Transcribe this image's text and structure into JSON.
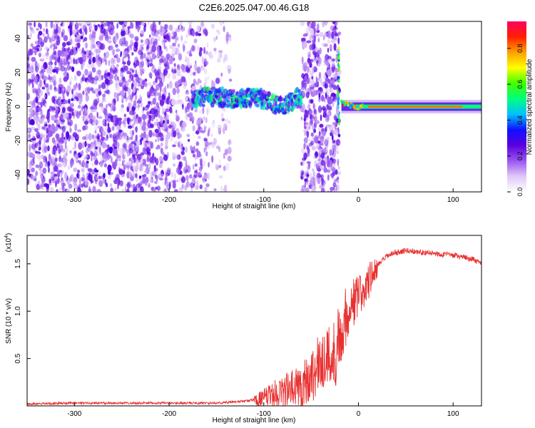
{
  "figure": {
    "title": "C2E6.2025.047.00.46.G18"
  },
  "chart_data": [
    {
      "type": "heatmap",
      "xlabel": "Height of straight line (km)",
      "ylabel": "Frequency (Hz)",
      "xlim": [
        -350,
        130
      ],
      "ylim": [
        -50,
        50
      ],
      "x_ticks": [
        -300,
        -200,
        -100,
        0,
        100
      ],
      "y_ticks": [
        -40,
        -20,
        0,
        20,
        40
      ],
      "grid": false,
      "colorbar": {
        "label": "Normalized spectral amplitude",
        "range": [
          0,
          0.95
        ],
        "ticks": [
          "0.0",
          "0.2",
          "0.4",
          "0.6",
          "0.8"
        ],
        "ticks_values": [
          0,
          0.2,
          0.4,
          0.6,
          0.8
        ],
        "colormap": [
          "#ffffff",
          "#e0c8f8",
          "#9a55f0",
          "#5a00e0",
          "#1010ff",
          "#00c0ff",
          "#00ff80",
          "#40ff00",
          "#ffff00",
          "#ffa000",
          "#ff2000",
          "#ff0060"
        ]
      },
      "regions": [
        {
          "x": [
            -350,
            -140
          ],
          "y": [
            -50,
            50
          ],
          "description_level": 0.3
        },
        {
          "x": [
            -175,
            -60
          ],
          "y": [
            -5,
            12
          ],
          "description_level": 0.45
        },
        {
          "x": [
            -60,
            -20
          ],
          "y": [
            -50,
            50
          ],
          "description_level": 0.3
        },
        {
          "x": [
            -18,
            130
          ],
          "y": [
            -2,
            2
          ],
          "description_level": 0.85
        }
      ],
      "trace": [
        {
          "x": -175,
          "y": 5
        },
        {
          "x": -150,
          "y": 6
        },
        {
          "x": -130,
          "y": 4
        },
        {
          "x": -110,
          "y": 6
        },
        {
          "x": -95,
          "y": 3
        },
        {
          "x": -80,
          "y": 0
        },
        {
          "x": -65,
          "y": 5
        },
        {
          "x": -20,
          "y": 3
        },
        {
          "x": -10,
          "y": 1
        },
        {
          "x": 0,
          "y": 0
        },
        {
          "x": 130,
          "y": 0
        }
      ]
    },
    {
      "type": "line",
      "xlabel": "Height of straight line (km)",
      "ylabel": "SNR (10 * v/v)",
      "y_multiplier": "(x10",
      "y_multiplier_exp": "4",
      "y_multiplier_close": ")",
      "xlim": [
        -350,
        130
      ],
      "ylim": [
        0,
        1.8
      ],
      "x_ticks": [
        -300,
        -200,
        -100,
        0,
        100
      ],
      "y_ticks": [
        0.5,
        1.0,
        1.5
      ],
      "y_tick_labels": [
        "0.5",
        "1.0",
        "1.5"
      ],
      "grid": false,
      "series": [
        {
          "color": "#e83030",
          "x": [
            -350,
            -300,
            -250,
            -200,
            -150,
            -120,
            -100,
            -90,
            -80,
            -70,
            -60,
            -50,
            -45,
            -40,
            -35,
            -30,
            -25,
            -20,
            -15,
            -10,
            -5,
            0,
            5,
            10,
            20,
            30,
            40,
            50,
            60,
            70,
            80,
            90,
            100,
            110,
            120,
            130
          ],
          "y": [
            0.02,
            0.03,
            0.03,
            0.03,
            0.03,
            0.05,
            0.08,
            0.12,
            0.16,
            0.17,
            0.22,
            0.32,
            0.38,
            0.46,
            0.52,
            0.5,
            0.56,
            0.72,
            0.9,
            1.02,
            1.1,
            1.15,
            1.2,
            1.3,
            1.48,
            1.58,
            1.62,
            1.64,
            1.63,
            1.62,
            1.61,
            1.6,
            1.59,
            1.57,
            1.55,
            1.5
          ]
        }
      ]
    }
  ]
}
